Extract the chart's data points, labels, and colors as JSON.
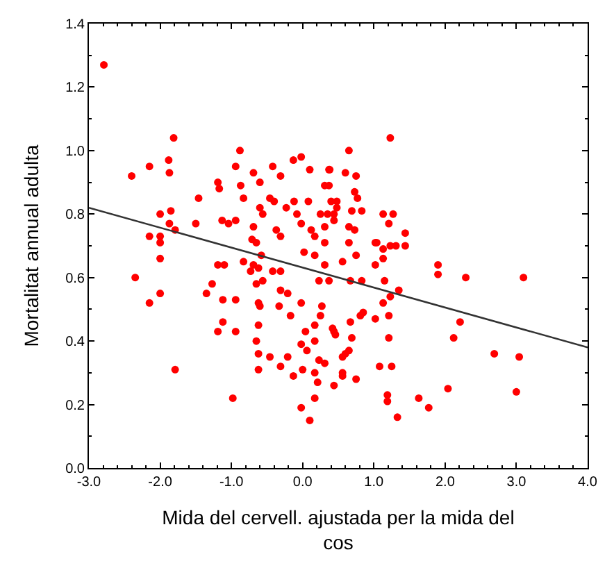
{
  "chart_data": {
    "type": "scatter",
    "xlabel": "Mida del cervell. ajustada per la mida del cos",
    "ylabel": "Mortalitat annual adulta",
    "xlim": [
      -3.0,
      4.0
    ],
    "ylim": [
      0.0,
      1.4
    ],
    "xticks": [
      {
        "value": -3.0,
        "label": "-3.0"
      },
      {
        "value": -2.0,
        "label": "-2.0"
      },
      {
        "value": -1.0,
        "label": "-1.0"
      },
      {
        "value": 0.0,
        "label": "0.0"
      },
      {
        "value": 1.0,
        "label": "1.0"
      },
      {
        "value": 2.0,
        "label": "2.0"
      },
      {
        "value": 3.0,
        "label": "3.0"
      },
      {
        "value": 4.0,
        "label": "4.0"
      }
    ],
    "yticks": [
      {
        "value": 0.0,
        "label": "0.0"
      },
      {
        "value": 0.2,
        "label": "0.2"
      },
      {
        "value": 0.4,
        "label": "0.4"
      },
      {
        "value": 0.6,
        "label": "0.6"
      },
      {
        "value": 0.8,
        "label": "0.8"
      },
      {
        "value": 1.0,
        "label": "1.0"
      },
      {
        "value": 1.2,
        "label": "1.2"
      },
      {
        "value": 1.4,
        "label": "1.4"
      }
    ],
    "series": [
      {
        "color": "#ff0000",
        "marker": "circle",
        "x": [
          -2.79,
          -2.4,
          -2.15,
          -1.81,
          -1.88,
          -1.87,
          -0.88,
          -0.94,
          -0.69,
          -0.6,
          -0.42,
          -0.31,
          -0.13,
          -0.02,
          0.1,
          0.37,
          0.31,
          -1.19,
          -1.17,
          -0.87,
          -0.83,
          -1.46,
          -2.0,
          -1.85,
          -1.87,
          -1.79,
          -1.5,
          -2.15,
          -2.0,
          -2.0,
          -1.13,
          -1.04,
          -0.94,
          -0.69,
          -0.65,
          -0.6,
          -0.56,
          -0.46,
          -0.4,
          -0.37,
          -0.31,
          -0.23,
          -0.12,
          -0.08,
          -0.02,
          0.08,
          0.12,
          0.17,
          0.25,
          0.31,
          0.31,
          0.4,
          0.44,
          1.23,
          0.65,
          0.38,
          0.6,
          0.75,
          0.37,
          0.73,
          0.77,
          0.48,
          0.48,
          0.69,
          0.83,
          0.35,
          0.44,
          0.65,
          0.73,
          1.13,
          1.27,
          1.21,
          1.44,
          1.23,
          1.04,
          0.65,
          1.02,
          1.13,
          1.31,
          1.44,
          0.56,
          0.75,
          1.02,
          1.13,
          1.9,
          1.9,
          2.29,
          3.1,
          0.37,
          0.67,
          0.83,
          1.15,
          1.35,
          1.13,
          1.23,
          1.21,
          1.02,
          0.85,
          0.81,
          0.67,
          0.42,
          0.46,
          0.69,
          1.21,
          2.21,
          2.12,
          0.65,
          0.6,
          0.56,
          1.08,
          1.25,
          0.56,
          0.56,
          0.75,
          0.44,
          2.69,
          3.04,
          2.04,
          3.0,
          1.19,
          1.19,
          1.63,
          1.77,
          1.33,
          0.31,
          -2.0,
          -2.35,
          -2.15,
          -2.0,
          -1.79,
          -0.98,
          -1.19,
          -1.1,
          -0.83,
          -1.27,
          -1.35,
          -1.12,
          -0.94,
          -1.12,
          -1.19,
          -0.94,
          -0.73,
          -0.62,
          -0.56,
          -0.65,
          -0.42,
          -0.31,
          -0.71,
          -0.58,
          -0.31,
          -0.21,
          -0.33,
          -0.17,
          -0.62,
          -0.6,
          -0.62,
          -0.65,
          -0.62,
          -0.46,
          -0.21,
          -0.31,
          -0.62,
          -0.13,
          -0.02,
          0.04,
          -0.02,
          0.06,
          0.0,
          -0.02,
          0.1,
          0.17,
          0.17,
          0.21,
          0.23,
          0.17,
          0.17,
          0.27,
          0.25,
          0.44,
          0.23,
          0.31,
          -0.69,
          0.02,
          0.17
        ],
        "values": [
          1.27,
          0.92,
          0.95,
          1.04,
          0.97,
          0.93,
          1.0,
          0.95,
          0.93,
          0.9,
          0.95,
          0.92,
          0.97,
          0.98,
          0.94,
          0.94,
          0.89,
          0.9,
          0.88,
          0.89,
          0.85,
          0.85,
          0.8,
          0.81,
          0.77,
          0.75,
          0.77,
          0.73,
          0.73,
          0.71,
          0.78,
          0.77,
          0.78,
          0.76,
          0.71,
          0.82,
          0.8,
          0.85,
          0.84,
          0.75,
          0.73,
          0.82,
          0.84,
          0.8,
          0.77,
          0.84,
          0.75,
          0.73,
          0.8,
          0.76,
          0.71,
          0.84,
          0.8,
          1.04,
          1.0,
          0.94,
          0.93,
          0.92,
          0.89,
          0.87,
          0.85,
          0.84,
          0.82,
          0.81,
          0.81,
          0.8,
          0.78,
          0.76,
          0.75,
          0.8,
          0.8,
          0.77,
          0.74,
          0.7,
          0.71,
          0.71,
          0.71,
          0.69,
          0.7,
          0.7,
          0.65,
          0.67,
          0.64,
          0.66,
          0.64,
          0.61,
          0.6,
          0.6,
          0.59,
          0.59,
          0.59,
          0.59,
          0.56,
          0.52,
          0.54,
          0.48,
          0.47,
          0.49,
          0.48,
          0.46,
          0.44,
          0.42,
          0.41,
          0.41,
          0.46,
          0.41,
          0.37,
          0.36,
          0.35,
          0.32,
          0.32,
          0.3,
          0.29,
          0.28,
          0.26,
          0.36,
          0.35,
          0.25,
          0.24,
          0.23,
          0.21,
          0.22,
          0.19,
          0.16,
          0.33,
          0.66,
          0.6,
          0.52,
          0.55,
          0.31,
          0.22,
          0.64,
          0.64,
          0.65,
          0.58,
          0.55,
          0.53,
          0.53,
          0.46,
          0.43,
          0.43,
          0.62,
          0.63,
          0.59,
          0.58,
          0.62,
          0.62,
          0.72,
          0.67,
          0.56,
          0.55,
          0.51,
          0.48,
          0.52,
          0.51,
          0.45,
          0.4,
          0.36,
          0.35,
          0.35,
          0.32,
          0.31,
          0.29,
          0.52,
          0.43,
          0.39,
          0.37,
          0.31,
          0.19,
          0.15,
          0.22,
          0.3,
          0.27,
          0.34,
          0.4,
          0.45,
          0.51,
          0.48,
          0.43,
          0.59,
          0.64,
          0.64,
          0.68,
          0.67
        ]
      },
      {
        "type": "line",
        "color": "#333333",
        "x": [
          -3.0,
          4.0
        ],
        "values": [
          0.82,
          0.38
        ]
      }
    ]
  }
}
